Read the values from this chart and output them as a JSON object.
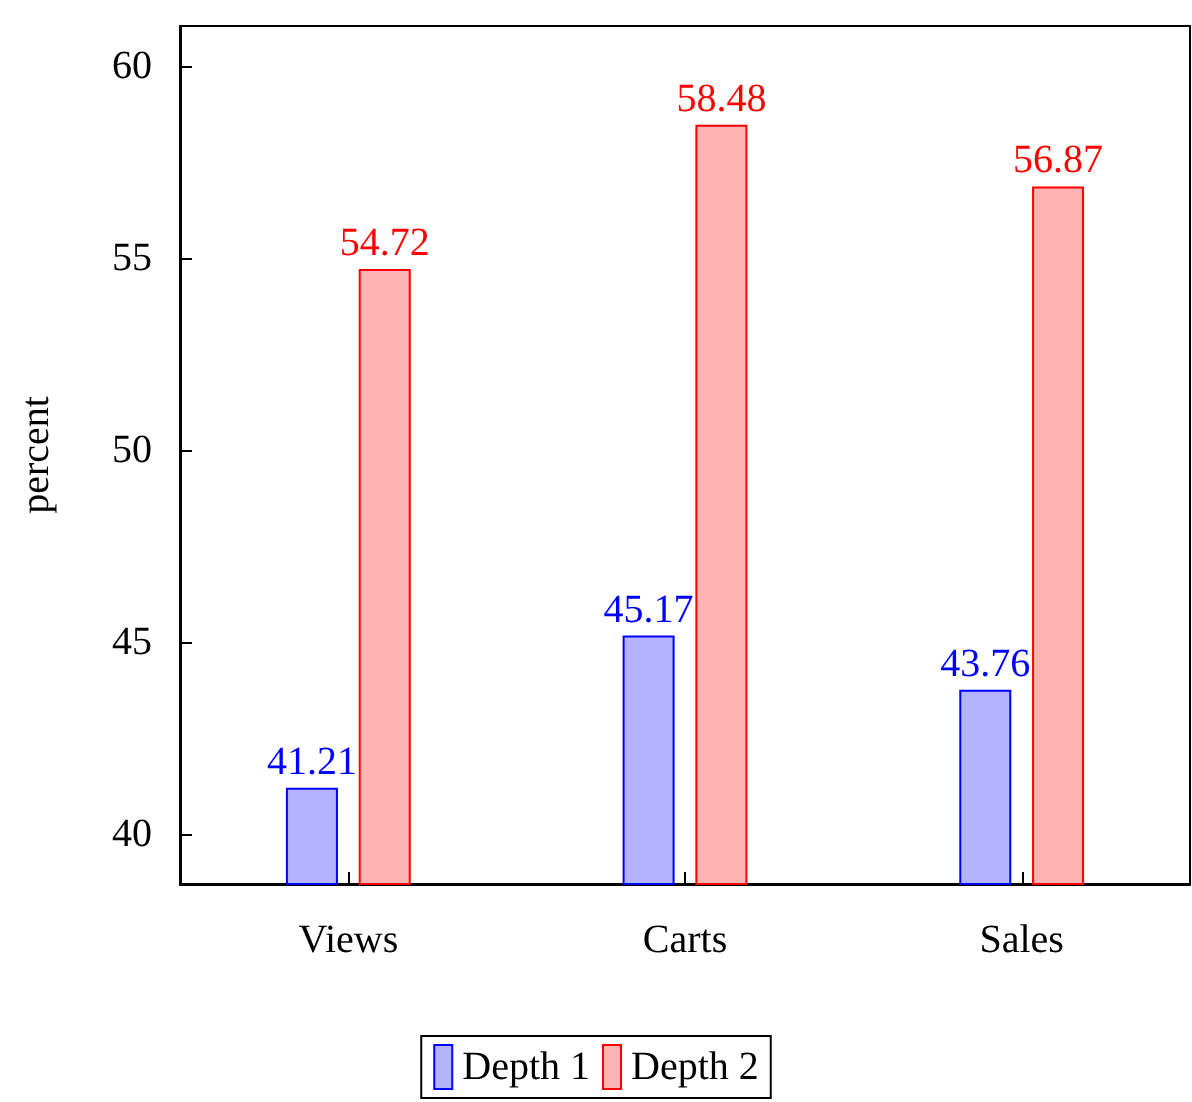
{
  "chart_data": {
    "type": "bar",
    "ylabel": "percent",
    "categories": [
      "Views",
      "Carts",
      "Sales"
    ],
    "series": [
      {
        "name": "Depth 1",
        "color": "#b3b3ff",
        "values": [
          41.21,
          45.17,
          43.76
        ]
      },
      {
        "name": "Depth 2",
        "color": "#ffb3b3",
        "values": [
          54.72,
          58.48,
          56.87
        ]
      }
    ],
    "ylim": [
      38.7,
      61.05
    ],
    "yticks": [
      40,
      45,
      50,
      55,
      60
    ],
    "grid": false,
    "legend": "bottom",
    "data_labels": true
  }
}
